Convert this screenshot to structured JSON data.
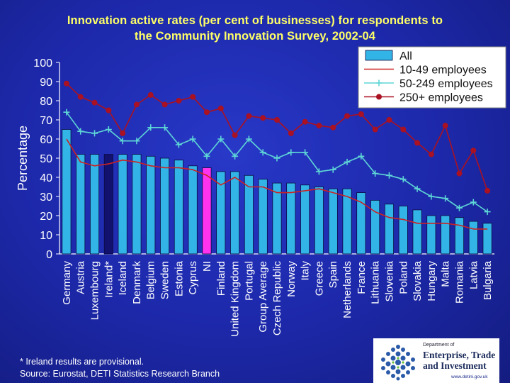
{
  "title_lines": [
    "Innovation active rates (per cent of businesses) for respondents to",
    "the Community Innovation Survey, 2002-04"
  ],
  "footnotes": [
    "* Ireland results are provisional.",
    "Source: Eurostat, DETI Statistics Research Branch"
  ],
  "logo": {
    "line1": "Department of",
    "line2": "Enterprise, Trade and Investment",
    "url": "www.detini.gov.uk"
  },
  "colors": {
    "bar_default": "#33b4e6",
    "bar_ireland": "#12126e",
    "bar_ni": "#ff33ee",
    "line_small": "#cc2222",
    "line_medium": "#5ed6d6",
    "line_large": "#aa1122",
    "axis_text": "#ffffff"
  },
  "chart_data": {
    "type": "bar",
    "ylabel": "Percentage",
    "xlabel": "",
    "ylim": [
      0,
      100
    ],
    "yticks": [
      0,
      10,
      20,
      30,
      40,
      50,
      60,
      70,
      80,
      90,
      100
    ],
    "legend_position": "top-right",
    "categories": [
      "Germany",
      "Austria",
      "Luxembourg",
      "Ireland*",
      "Iceland",
      "Denmark",
      "Belgium",
      "Sweden",
      "Estonia",
      "Cyprus",
      "NI",
      "Finland",
      "United Kingdom",
      "Portugal",
      "Group Average",
      "Czech Republic",
      "Norway",
      "Italy",
      "Greece",
      "Spain",
      "Netherlands",
      "France",
      "Lithuania",
      "Slovenia",
      "Poland",
      "Slovakia",
      "Hungary",
      "Malta",
      "Romania",
      "Latvia",
      "Bulgaria"
    ],
    "highlighted": {
      "Ireland*": "bar_ireland",
      "NI": "bar_ni"
    },
    "series": [
      {
        "name": "All",
        "kind": "bar",
        "values": [
          65,
          52,
          52,
          52,
          52,
          52,
          51,
          50,
          49,
          46,
          45,
          43,
          43,
          41,
          39,
          37,
          37,
          36,
          35,
          34,
          34,
          32,
          28,
          26,
          25,
          23,
          20,
          20,
          19,
          17,
          16
        ]
      },
      {
        "name": "10-49 employees",
        "kind": "line",
        "values": [
          60,
          48,
          46,
          47,
          49,
          48,
          46,
          45,
          45,
          44,
          41,
          36,
          40,
          35,
          35,
          32,
          32,
          33,
          34,
          32,
          30,
          27,
          22,
          19,
          18,
          16,
          16,
          16,
          15,
          13,
          13
        ]
      },
      {
        "name": "50-249 employees",
        "kind": "line-plus",
        "values": [
          74,
          64,
          63,
          65,
          59,
          59,
          66,
          66,
          57,
          60,
          51,
          60,
          51,
          60,
          53,
          50,
          53,
          53,
          43,
          44,
          48,
          51,
          42,
          41,
          39,
          34,
          30,
          29,
          24,
          27,
          22
        ]
      },
      {
        "name": "250+ employees",
        "kind": "line-dot",
        "values": [
          89,
          82,
          79,
          75,
          63,
          78,
          83,
          78,
          80,
          82,
          74,
          76,
          62,
          72,
          71,
          70,
          63,
          69,
          67,
          66,
          72,
          73,
          65,
          70,
          65,
          58,
          52,
          67,
          42,
          54,
          33
        ]
      }
    ]
  }
}
